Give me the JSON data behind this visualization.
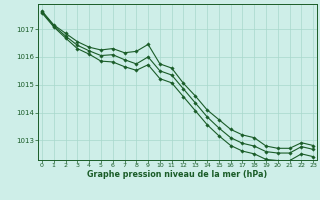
{
  "title": "Graphe pression niveau de la mer (hPa)",
  "background_color": "#ceeee8",
  "grid_color": "#a8d8cc",
  "line_color": "#1a5c28",
  "x_ticks": [
    0,
    1,
    2,
    3,
    4,
    5,
    6,
    7,
    8,
    9,
    10,
    11,
    12,
    13,
    14,
    15,
    16,
    17,
    18,
    19,
    20,
    21,
    22,
    23
  ],
  "y_ticks": [
    1013,
    1014,
    1015,
    1016,
    1017
  ],
  "ylim": [
    1012.3,
    1017.9
  ],
  "xlim": [
    -0.3,
    23.3
  ],
  "line1": [
    1017.65,
    1017.15,
    1016.85,
    1016.55,
    1016.35,
    1016.25,
    1016.3,
    1016.15,
    1016.2,
    1016.45,
    1015.75,
    1015.6,
    1015.05,
    1014.6,
    1014.1,
    1013.75,
    1013.4,
    1013.2,
    1013.1,
    1012.8,
    1012.72,
    1012.72,
    1012.92,
    1012.82
  ],
  "line2": [
    1017.62,
    1017.12,
    1016.75,
    1016.42,
    1016.22,
    1016.05,
    1016.08,
    1015.9,
    1015.75,
    1016.0,
    1015.5,
    1015.35,
    1014.85,
    1014.35,
    1013.85,
    1013.45,
    1013.1,
    1012.9,
    1012.8,
    1012.6,
    1012.55,
    1012.55,
    1012.78,
    1012.68
  ],
  "line3": [
    1017.58,
    1017.08,
    1016.68,
    1016.3,
    1016.1,
    1015.85,
    1015.82,
    1015.65,
    1015.52,
    1015.72,
    1015.22,
    1015.07,
    1014.57,
    1014.07,
    1013.57,
    1013.17,
    1012.82,
    1012.62,
    1012.52,
    1012.32,
    1012.28,
    1012.28,
    1012.52,
    1012.42
  ]
}
